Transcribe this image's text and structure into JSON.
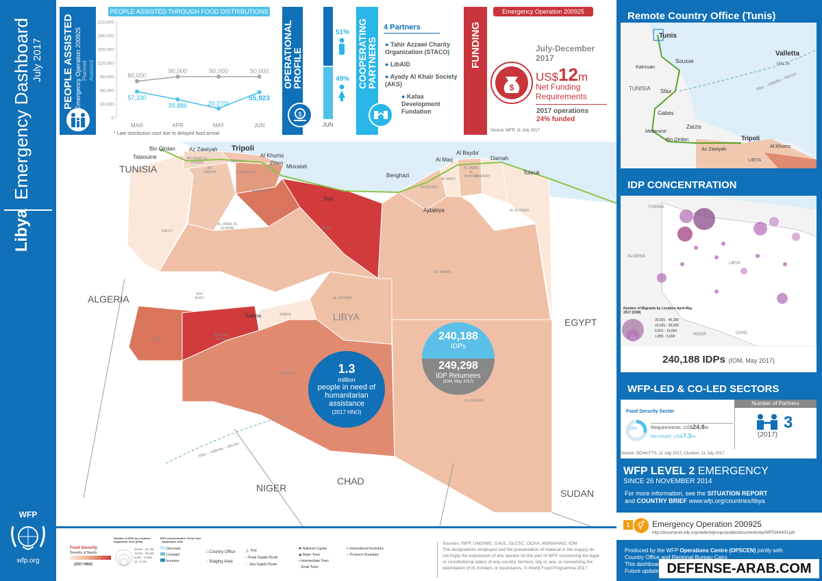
{
  "sidebar": {
    "title": "Emergency Dashboard",
    "date": "July 2017",
    "country": "Libya",
    "org_logo": "WFP",
    "org_site": "wfp.org"
  },
  "people_assisted": {
    "title": "PEOPLE ASSISTED",
    "subtitle": "Emergency Operation 200925",
    "chart_title": "PEOPLE ASSISTED THROUGH FOOD DISTRIBUTIONS",
    "legend_planned": "Planned",
    "legend_assisted": "Assisted",
    "footnote": "* Late distribution start due to delayed food arrival"
  },
  "chart_data": {
    "type": "line",
    "title": "PEOPLE ASSISTED THROUGH FOOD DISTRIBUTIONS",
    "categories": [
      "MAR",
      "APR",
      "MAY",
      "JUN"
    ],
    "yticks": [
      "0",
      "30,000",
      "60,000",
      "90,000",
      "120,000",
      "150,000",
      "180,000",
      "210,000"
    ],
    "ylim": [
      0,
      210000
    ],
    "series": [
      {
        "name": "Planned",
        "values": [
          80000,
          90000,
          90000,
          90000
        ],
        "labels": [
          "80,000",
          "90,000",
          "90,000",
          "90,000"
        ],
        "color": "#a6a6a6"
      },
      {
        "name": "Assisted",
        "values": [
          57330,
          39886,
          20270,
          55923
        ],
        "labels": [
          "57,330",
          "39,886",
          "20,270*",
          "55,923"
        ],
        "color": "#4fc1e9"
      }
    ]
  },
  "operational_profile": {
    "title": "OPERATIONAL PROFILE",
    "male_pct": "51%",
    "female_pct": "49%",
    "month": "JUN",
    "male_value": 51,
    "female_value": 49
  },
  "partners": {
    "title": "COOPERATING PARTNERS",
    "count_label": "4 Partners",
    "items": [
      "Tahir Azzawi Charity Organization (STACO)",
      "LibAID",
      "Ayady Al Khair Society (AKS)",
      "Kafaa Development Fundation"
    ]
  },
  "funding": {
    "title": "FUNDING",
    "badge": "Emergency Operation 200925",
    "period": "July-December 2017",
    "currency": "US$",
    "amount": "12",
    "unit": "m",
    "label": "Net Funding Requirements",
    "ops_label": "2017 operations",
    "funded": "24% funded",
    "source": "Source: WFP, 11 July 2017"
  },
  "map": {
    "labels": {
      "tunisia": "TUNISIA",
      "algeria": "ALGERIA",
      "egypt": "EGYPT",
      "libya": "LIBYA",
      "niger": "NIGER",
      "chad": "CHAD",
      "sudan": "SUDAN",
      "tripoli": "Tripoli",
      "bin_qirdan": "Bin Qirdan",
      "az_zawiyah": "Az Zawiyah",
      "tataouine": "Tataouine",
      "al_khums": "Al Khums",
      "zliten": "Zliten",
      "misratah": "Misratah",
      "surt": "Surt",
      "benghazi": "Benghazi",
      "al_marj": "Al Marj",
      "al_bayda": "Al Bayda'",
      "darnah": "Darnah",
      "tobruk": "Tobruk",
      "ajdabiya": "Ajdabiya",
      "sabha": "Sabha",
      "r_nalut": "NALUT",
      "r_jabal_gharbi": "AL JABAL AL GHARBI",
      "r_misratah": "MISRATAH",
      "r_surt": "SURT",
      "r_ash_shati": "ASH SHATI",
      "r_al_jufrah": "AL JUFRAH",
      "r_al_wahat": "AL WAHAT",
      "r_al_butnan": "AL BUTNAN",
      "r_sabha": "SABHA",
      "r_ghat": "GHAT",
      "r_wadi_al_hayaa": "WADI AL HAYAA",
      "r_murzuq": "MURZUQ",
      "r_al_kufrah": "AL KUFRAH",
      "r_benghazi": "BENGHAZI",
      "r_al_marj": "AL MARJ",
      "r_darnah": "DARNAH",
      "r_jabal_akhdar": "AL JABAL AL AKHDAR",
      "r_al_margab": "AL MARGAB",
      "r_tripoli": "TRIPOLI",
      "r_az_zawiya": "AZ ZAWIYA",
      "r_an_nuqat": "AN NIQAT AL KHUMS",
      "sea_route": "Sfax – Valletta – Mersin"
    },
    "idps_value": "240,188",
    "idps_label": "IDPs",
    "returnees_value": "249,298",
    "returnees_label": "IDP Returnees",
    "returnees_source": "(IOM, May 2017)",
    "hno_value": "1.3",
    "hno_unit": "million",
    "hno_label": "people in need of humanitarian assistance",
    "hno_source": "(2017 HNO)"
  },
  "legend": {
    "food_security_title": "Food Security",
    "food_security_sub": "Severity of Needs",
    "food_security_source": "(2017 HNO)",
    "idps_title": "Number of IDPs by Location September 2016 (IOM)",
    "idps_ranges": [
      "25,001 - 51,730",
      "12,001 - 25,000",
      "3,001 - 12,000",
      "10 - 3,001"
    ],
    "trend_title": "IDPs Concentration Trend June - September 2016",
    "trend_items": [
      "Decrease",
      "Constant",
      "Increase"
    ],
    "items_a": [
      "Country Office",
      "Staging Area"
    ],
    "items_b": [
      "Port",
      "Road Supply Route",
      "Sea Supply Route"
    ],
    "items_c": [
      "National Capital",
      "Major Town",
      "Intermediate Town",
      "Small Town"
    ],
    "items_d": [
      "International boundary",
      "Province Boundary"
    ],
    "sources": "Sources: WFP, UNGIWG, GAUL, GLCSC, OCHA, MSNA/HNO, IOM",
    "disclaimer": "The designations employed and the presentation of material in the map(s) do not imply the expression of any opinion on the part of WFP concerning the legal or constitutional status of any country, territory, city or sea, or concerning the delimitation of its frontiers or boundaries.",
    "copyright": "© World Food Programme 2017"
  },
  "remote_office": {
    "title": "Remote Country Office (Tunis)",
    "labels": [
      "Tunis",
      "Valletta",
      "MALTA",
      "Kairouan",
      "Sousse",
      "TUNISIA",
      "Sfax",
      "Gabes",
      "Zarzis",
      "Medenine",
      "Bin Qirdan",
      "Tripoli",
      "Az Zawiyah",
      "Al Khums",
      "LIBYA"
    ],
    "route": "Sfax – Valletta – Mersin"
  },
  "idp_concentration": {
    "title": "IDP CONCENTRATION",
    "labels": [
      "TUNISIA",
      "ALGERIA",
      "LIBYA",
      "NIGER",
      "CHAD"
    ],
    "legend_title": "Number of Migrants by Location April-May 2017 (IOM)",
    "legend_ranges": [
      "30,001 - 46,380",
      "15,001 - 30,000",
      "5,001 - 15,000",
      "1,855 - 5,000"
    ],
    "total_value": "240,188 IDPs",
    "total_source": "(IOM, May 2017)"
  },
  "sectors": {
    "title": "WFP-LED & CO-LED SECTORS",
    "partners_header": "Number of Partners",
    "sector_name": "Food Security Sector",
    "pct": "29%",
    "pct_value": 29,
    "requirements_label": "Requirements: US$",
    "requirements_value": "24.8",
    "requirements_unit": "m",
    "received_label": "Received: US$",
    "received_value": "7.3",
    "received_unit": "m",
    "partners_count": "3",
    "partners_year": "(2017)",
    "source": "Source: OCHA FTS, 11 July 2017; Clusters, 11 July 2017"
  },
  "level2": {
    "title_a": "WFP LEVEL 2",
    "title_b": "EMERGENCY",
    "since": "SINCE 26 NOVEMBER 2014",
    "info_a": "For more information, see the",
    "info_sitrep": "SITUATION REPORT",
    "info_and": "and",
    "info_brief": "COUNTRY BRIEF",
    "info_url": "www.wfp.org/countries/libya",
    "badge_num": "1",
    "eop": "Emergency Operation 200925",
    "eop_url": "http://documents.wfp.org/stellent/groups/public/documents/ep/WFP284303.pdf",
    "produced_a": "Produced by the WFP",
    "produced_b": "Operations Centre (OPSCEN)",
    "produced_c": "jointly with",
    "produced_d": "Country Office and Regional Bureau Cairo",
    "produced_e": "This dashboard",
    "produced_f": "Future update",
    "watermark": "DEFENSE-ARAB.COM"
  },
  "colors": {
    "primary": "#1070b8",
    "cyan": "#29b6e8",
    "red": "#c8353c",
    "sev1": "#fbe8da",
    "sev2": "#efc0a6",
    "sev3": "#e08a70",
    "sev4": "#d13b3b"
  }
}
